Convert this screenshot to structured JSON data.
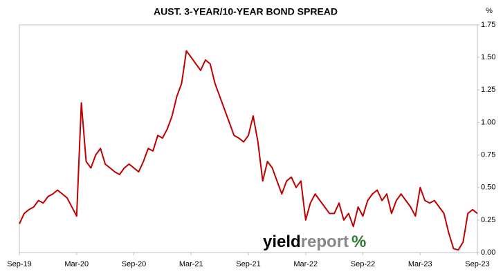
{
  "chart_data": {
    "type": "line",
    "title": "AUST. 3-YEAR/10-YEAR BOND SPREAD",
    "y_unit": "%",
    "watermark": [
      "yield",
      "report",
      "%"
    ],
    "color": "#c00000",
    "categories": [
      "Sep-19",
      null,
      null,
      null,
      null,
      null,
      null,
      null,
      null,
      null,
      null,
      null,
      "Mar-20",
      null,
      null,
      null,
      null,
      null,
      null,
      null,
      null,
      null,
      null,
      null,
      "Sep-20",
      null,
      null,
      null,
      null,
      null,
      null,
      null,
      null,
      null,
      null,
      null,
      "Mar-21",
      null,
      null,
      null,
      null,
      null,
      null,
      null,
      null,
      null,
      null,
      null,
      "Sep-21",
      null,
      null,
      null,
      null,
      null,
      null,
      null,
      null,
      null,
      null,
      null,
      "Mar-22",
      null,
      null,
      null,
      null,
      null,
      null,
      null,
      null,
      null,
      null,
      null,
      "Sep-22",
      null,
      null,
      null,
      null,
      null,
      null,
      null,
      null,
      null,
      null,
      null,
      "Mar-23",
      null,
      null,
      null,
      null,
      null,
      null,
      null,
      null,
      null,
      null,
      null,
      "Sep-23"
    ],
    "values": [
      0.22,
      0.3,
      0.33,
      0.35,
      0.4,
      0.38,
      0.43,
      0.45,
      0.48,
      0.45,
      0.42,
      0.35,
      0.28,
      1.15,
      0.7,
      0.65,
      0.75,
      0.8,
      0.68,
      0.65,
      0.62,
      0.6,
      0.65,
      0.68,
      0.65,
      0.62,
      0.7,
      0.8,
      0.78,
      0.9,
      0.88,
      0.95,
      1.05,
      1.2,
      1.3,
      1.55,
      1.5,
      1.45,
      1.4,
      1.48,
      1.45,
      1.3,
      1.2,
      1.1,
      1.0,
      0.9,
      0.88,
      0.85,
      0.9,
      1.05,
      0.85,
      0.55,
      0.7,
      0.65,
      0.55,
      0.45,
      0.55,
      0.58,
      0.5,
      0.55,
      0.25,
      0.38,
      0.45,
      0.4,
      0.35,
      0.3,
      0.3,
      0.38,
      0.25,
      0.3,
      0.2,
      0.35,
      0.28,
      0.4,
      0.45,
      0.48,
      0.4,
      0.45,
      0.3,
      0.4,
      0.45,
      0.4,
      0.35,
      0.28,
      0.5,
      0.4,
      0.38,
      0.4,
      0.35,
      0.3,
      0.15,
      0.03,
      0.02,
      0.08,
      0.3,
      0.33,
      0.3
    ],
    "ylim": [
      0,
      1.75
    ],
    "yticks": [
      {
        "value": 0,
        "label": "0.00"
      },
      0.25,
      {
        "value": 0.5,
        "label": "0.50"
      },
      0.75,
      {
        "value": 1,
        "label": "1.00"
      },
      1.25,
      {
        "value": 1.5,
        "label": "1.50"
      },
      1.75
    ],
    "grid": false
  }
}
